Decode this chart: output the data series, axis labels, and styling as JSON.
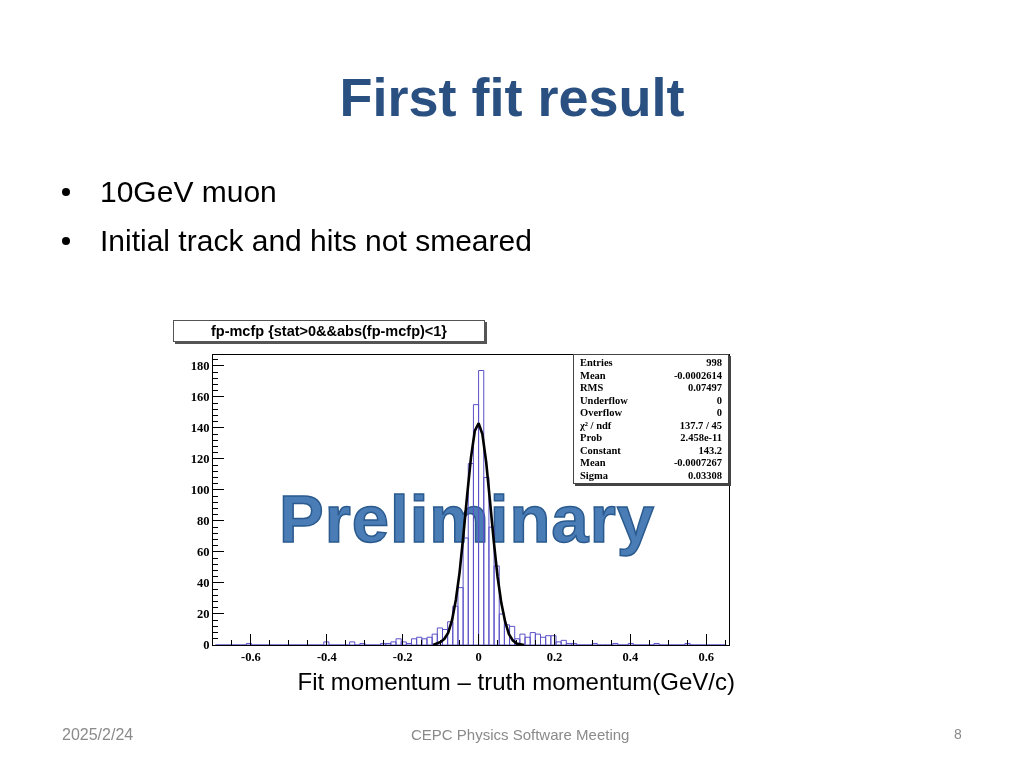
{
  "chart_data": {
    "type": "histogram",
    "title": "First fit result",
    "subtitle": "fp-mcfp {stat>0&&abs(fp-mcfp)<1}",
    "xlabel": "Fit momentum – truth momentum(GeV/c)",
    "xlim": [
      -0.7,
      0.66
    ],
    "ylim": [
      0,
      187
    ],
    "xticks": [
      {
        "value": -0.65,
        "label": null
      },
      -0.6,
      {
        "value": -0.55,
        "label": null
      },
      {
        "value": -0.5,
        "label": null
      },
      {
        "value": -0.45,
        "label": null
      },
      -0.4,
      {
        "value": -0.35,
        "label": null
      },
      {
        "value": -0.3,
        "label": null
      },
      {
        "value": -0.25,
        "label": null
      },
      -0.2,
      {
        "value": -0.15,
        "label": null
      },
      {
        "value": -0.1,
        "label": null
      },
      {
        "value": -0.05,
        "label": null
      },
      0,
      {
        "value": 0.05,
        "label": null
      },
      {
        "value": 0.1,
        "label": null
      },
      {
        "value": 0.15,
        "label": null
      },
      0.2,
      {
        "value": 0.25,
        "label": null
      },
      {
        "value": 0.3,
        "label": null
      },
      {
        "value": 0.35,
        "label": null
      },
      0.4,
      {
        "value": 0.45,
        "label": null
      },
      {
        "value": 0.5,
        "label": null
      },
      {
        "value": 0.55,
        "label": null
      },
      0.6,
      {
        "value": 0.65,
        "label": null
      }
    ],
    "yticks": [
      0,
      {
        "value": 4,
        "label": null
      },
      {
        "value": 8,
        "label": null
      },
      {
        "value": 12,
        "label": null
      },
      {
        "value": 16,
        "label": null
      },
      20,
      {
        "value": 24,
        "label": null
      },
      {
        "value": 28,
        "label": null
      },
      {
        "value": 32,
        "label": null
      },
      {
        "value": 36,
        "label": null
      },
      40,
      {
        "value": 44,
        "label": null
      },
      {
        "value": 48,
        "label": null
      },
      {
        "value": 52,
        "label": null
      },
      {
        "value": 56,
        "label": null
      },
      60,
      {
        "value": 64,
        "label": null
      },
      {
        "value": 68,
        "label": null
      },
      {
        "value": 72,
        "label": null
      },
      {
        "value": 76,
        "label": null
      },
      80,
      {
        "value": 84,
        "label": null
      },
      {
        "value": 88,
        "label": null
      },
      {
        "value": 92,
        "label": null
      },
      {
        "value": 96,
        "label": null
      },
      100,
      {
        "value": 104,
        "label": null
      },
      {
        "value": 108,
        "label": null
      },
      {
        "value": 112,
        "label": null
      },
      {
        "value": 116,
        "label": null
      },
      120,
      {
        "value": 124,
        "label": null
      },
      {
        "value": 128,
        "label": null
      },
      {
        "value": 132,
        "label": null
      },
      {
        "value": 136,
        "label": null
      },
      140,
      {
        "value": 144,
        "label": null
      },
      {
        "value": 148,
        "label": null
      },
      {
        "value": 152,
        "label": null
      },
      {
        "value": 156,
        "label": null
      },
      160,
      {
        "value": 164,
        "label": null
      },
      {
        "value": 168,
        "label": null
      },
      {
        "value": 172,
        "label": null
      },
      {
        "value": 176,
        "label": null
      },
      180,
      {
        "value": 184,
        "label": null
      }
    ],
    "bins": [
      -0.6936,
      -0.68,
      -0.6664,
      -0.6528,
      -0.6392,
      -0.6256,
      -0.612,
      -0.5984,
      -0.5848,
      -0.5712,
      -0.5576,
      -0.544,
      -0.5304,
      -0.5168,
      -0.5032,
      -0.4896,
      -0.476,
      -0.4624,
      -0.4488,
      -0.4352,
      -0.4216,
      -0.408,
      -0.3944,
      -0.3808,
      -0.3672,
      -0.3536,
      -0.34,
      -0.3264,
      -0.3128,
      -0.2992,
      -0.2856,
      -0.272,
      -0.2584,
      -0.2448,
      -0.2312,
      -0.2176,
      -0.204,
      -0.1904,
      -0.1768,
      -0.1632,
      -0.1496,
      -0.136,
      -0.1224,
      -0.1088,
      -0.0952,
      -0.0816,
      -0.068,
      -0.0544,
      -0.0408,
      -0.0272,
      -0.0136,
      0,
      0.0136,
      0.0272,
      0.0408,
      0.0544,
      0.068,
      0.0816,
      0.0952,
      0.1088,
      0.1224,
      0.136,
      0.1496,
      0.1632,
      0.1768,
      0.1904,
      0.204,
      0.2176,
      0.2312,
      0.2448,
      0.2584,
      0.272,
      0.2856,
      0.2992,
      0.3128,
      0.3264,
      0.34,
      0.3536,
      0.3672,
      0.3808,
      0.3944,
      0.408,
      0.4216,
      0.4352,
      0.4488,
      0.4624,
      0.476,
      0.4896,
      0.5032,
      0.5168,
      0.5304,
      0.544,
      0.5576,
      0.5712,
      0.5848,
      0.5984,
      0.612,
      0.6256,
      0.6392,
      0.6528
    ],
    "series": [
      {
        "color": "#5b52c8",
        "values": [
          0,
          0,
          0,
          0,
          0,
          0,
          1,
          0,
          0,
          0,
          0,
          0,
          0,
          0,
          0,
          0,
          0,
          0,
          0,
          0,
          0,
          2,
          0,
          0,
          0,
          0,
          2,
          0,
          1,
          0,
          0,
          0,
          1,
          1,
          2,
          4,
          2,
          1,
          4,
          5,
          4,
          5,
          7,
          11,
          10,
          15,
          25,
          37,
          69,
          117,
          155,
          177,
          108,
          76,
          51,
          20,
          13,
          12,
          4,
          7,
          5,
          8,
          7,
          5,
          6,
          6,
          2,
          3,
          1,
          1,
          0,
          0,
          0,
          1,
          0,
          0,
          0,
          1,
          0,
          0,
          1,
          0,
          0,
          0,
          0,
          1,
          0,
          0,
          0,
          0,
          0,
          1,
          0,
          0,
          0,
          0,
          0,
          0,
          0
        ]
      },
      {
        "type": "line",
        "color": "#000000",
        "x": [
          -0.12,
          -0.1,
          -0.09,
          -0.08,
          -0.07,
          -0.06,
          -0.05,
          -0.04,
          -0.03,
          -0.02,
          -0.01,
          0,
          0.01,
          0.02,
          0.03,
          0.04,
          0.05,
          0.06,
          0.07,
          0.08,
          0.09,
          0.1,
          0.12
        ],
        "values": [
          0,
          2,
          4,
          8,
          16,
          29,
          47,
          71,
          97,
          121,
          138,
          143,
          136,
          118,
          93,
          67,
          44,
          27,
          15,
          7,
          3,
          1,
          0
        ]
      }
    ],
    "annotations": [
      "10GeV muon",
      "Initial track and hits not smeared",
      "Entries",
      "998",
      "Mean",
      "-0.0002614",
      "RMS",
      "0.07497",
      "Underflow",
      "0",
      "Overflow",
      "0",
      "χ² / ndf",
      "137.7 / 45",
      "Prob",
      "2.458e-11",
      "Constant",
      "143.2",
      "Mean",
      "-0.0007267",
      "Sigma",
      "0.03308",
      "Preliminary",
      "2025/2/24",
      "CEPC Physics Software Meeting",
      "8"
    ]
  }
}
